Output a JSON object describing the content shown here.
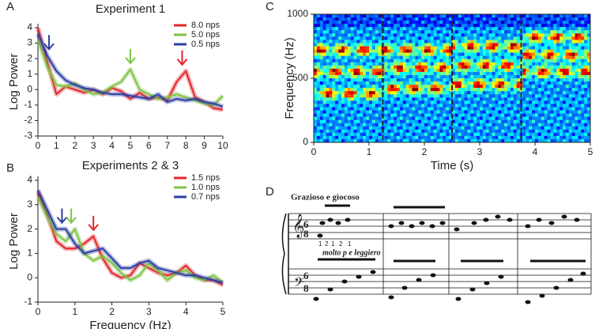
{
  "panels": [
    "A",
    "B",
    "C",
    "D"
  ],
  "chart_data": [
    {
      "type": "line",
      "title": "Experiment 1",
      "ylabel": "Log Power",
      "x": [
        0,
        0.5,
        1,
        1.5,
        2,
        2.5,
        3,
        3.5,
        4,
        4.5,
        5,
        5.5,
        6,
        6.5,
        7,
        7.5,
        8,
        8.5,
        9,
        9.5,
        10
      ],
      "xlim": [
        0,
        10
      ],
      "xticks": [
        0,
        1,
        2,
        3,
        4,
        5,
        6,
        7,
        8,
        9,
        10
      ],
      "ylim": [
        -3,
        4
      ],
      "yticks": [
        -3,
        -2,
        -1,
        0,
        1,
        2,
        3,
        4
      ],
      "legend": "upper right",
      "series": [
        {
          "name": "8.0 nps",
          "color": "#e3262b",
          "values": [
            4,
            1.8,
            -0.3,
            0.2,
            0,
            -0.2,
            0,
            -0.3,
            0.1,
            -0.1,
            -0.6,
            -0.2,
            -0.6,
            -0.5,
            -0.7,
            0.5,
            1.2,
            -0.5,
            -0.8,
            -1.2,
            -1.3
          ]
        },
        {
          "name": "5.0 nps",
          "color": "#7dc444",
          "values": [
            3.2,
            1.5,
            0.3,
            0.2,
            0.4,
            0,
            -0.3,
            -0.2,
            0.2,
            0.5,
            1.3,
            0,
            -0.3,
            -0.6,
            -0.5,
            -0.3,
            -0.5,
            -0.7,
            -0.9,
            -1,
            -0.4
          ]
        },
        {
          "name": "0.5 nps",
          "color": "#2d3fa3",
          "values": [
            3.6,
            2.2,
            1.2,
            0.6,
            0.3,
            0.1,
            0,
            -0.2,
            -0.3,
            -0.3,
            -0.4,
            -0.5,
            -0.6,
            -0.3,
            -0.8,
            -0.6,
            -0.7,
            -0.6,
            -0.8,
            -0.9,
            -1.1
          ]
        }
      ],
      "arrows": [
        {
          "x": 0.6,
          "color": "#2d3fa3"
        },
        {
          "x": 5,
          "color": "#7dc444"
        },
        {
          "x": 7.8,
          "color": "#e3262b"
        }
      ]
    },
    {
      "type": "line",
      "title": "Experiments 2 & 3",
      "xlabel": "Frequency (Hz)",
      "ylabel": "Log Power",
      "x": [
        0,
        0.25,
        0.5,
        0.75,
        1,
        1.25,
        1.5,
        1.75,
        2,
        2.25,
        2.5,
        2.75,
        3,
        3.25,
        3.5,
        3.75,
        4,
        4.25,
        4.5,
        4.75,
        5
      ],
      "xlim": [
        0,
        5
      ],
      "xticks": [
        0,
        1,
        2,
        3,
        4,
        5
      ],
      "ylim": [
        -1,
        4
      ],
      "yticks": [
        -1,
        0,
        1,
        2,
        3,
        4
      ],
      "legend": "upper right",
      "series": [
        {
          "name": "1.5 nps",
          "color": "#e3262b",
          "values": [
            3.5,
            2.6,
            1.5,
            1.2,
            1.2,
            1.4,
            1.7,
            0.8,
            0.2,
            0,
            0.1,
            0.6,
            0.4,
            0.2,
            0.1,
            0.2,
            0.5,
            0.1,
            -0.1,
            -0.1,
            -0.3
          ]
        },
        {
          "name": "1.0 nps",
          "color": "#7dc444",
          "values": [
            3.3,
            2.5,
            1.8,
            1.5,
            2,
            1,
            0.7,
            0.9,
            0.6,
            0.2,
            -0.1,
            0.1,
            0.6,
            0.3,
            -0.1,
            0.2,
            0.3,
            0,
            -0.1,
            0.1,
            -0.2
          ]
        },
        {
          "name": "0.7 nps",
          "color": "#2d3fa3",
          "values": [
            3.6,
            2.8,
            2,
            2,
            1.4,
            1,
            1.1,
            1.2,
            0.8,
            0.4,
            0.4,
            0.6,
            0.7,
            0.4,
            0.3,
            0.2,
            0.1,
            0.1,
            0,
            -0.1,
            -0.2
          ]
        }
      ],
      "arrows": [
        {
          "x": 0.65,
          "color": "#2d3fa3"
        },
        {
          "x": 0.9,
          "color": "#7dc444"
        },
        {
          "x": 1.5,
          "color": "#e3262b"
        }
      ]
    },
    {
      "type": "heatmap",
      "xlabel": "Time (s)",
      "ylabel": "Frequency (Hz)",
      "xlim": [
        0,
        5
      ],
      "xticks": [
        0,
        1,
        2,
        3,
        4,
        5
      ],
      "ylim": [
        0,
        1000
      ],
      "yticks": [
        0,
        500,
        1000
      ],
      "dividers": [
        1.25,
        2.5,
        3.75
      ]
    }
  ],
  "score": {
    "tempo": "Grazioso e giocoso",
    "expression": "molto p e leggiero",
    "time_signature": [
      "6",
      "8"
    ],
    "fingering": [
      "1",
      "2",
      "1",
      "2",
      "1"
    ]
  }
}
